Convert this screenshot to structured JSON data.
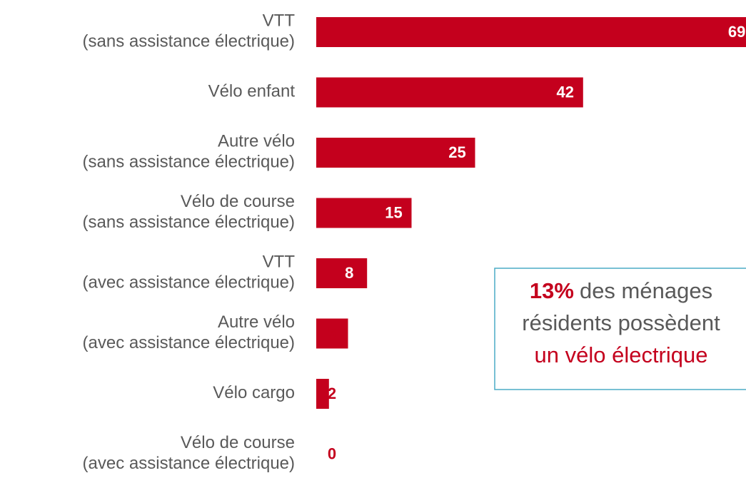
{
  "chart_data": {
    "type": "bar",
    "orientation": "horizontal",
    "categories": [
      "VTT\n(sans assistance électrique)",
      "Vélo enfant",
      "Autre vélo\n(sans assistance électrique)",
      "Vélo de course\n(sans assistance électrique)",
      "VTT\n(avec assistance électrique)",
      "Autre vélo\n(avec assistance électrique)",
      "Vélo cargo",
      "Vélo de course\n(avec assistance électrique)"
    ],
    "values": [
      69,
      42,
      25,
      15,
      8,
      5,
      2,
      0
    ],
    "color": "#c4001d",
    "annotation": {
      "highlight": "13%",
      "line1": "des ménages",
      "line2": "résidents possèdent",
      "line3": "un vélo électrique"
    }
  }
}
